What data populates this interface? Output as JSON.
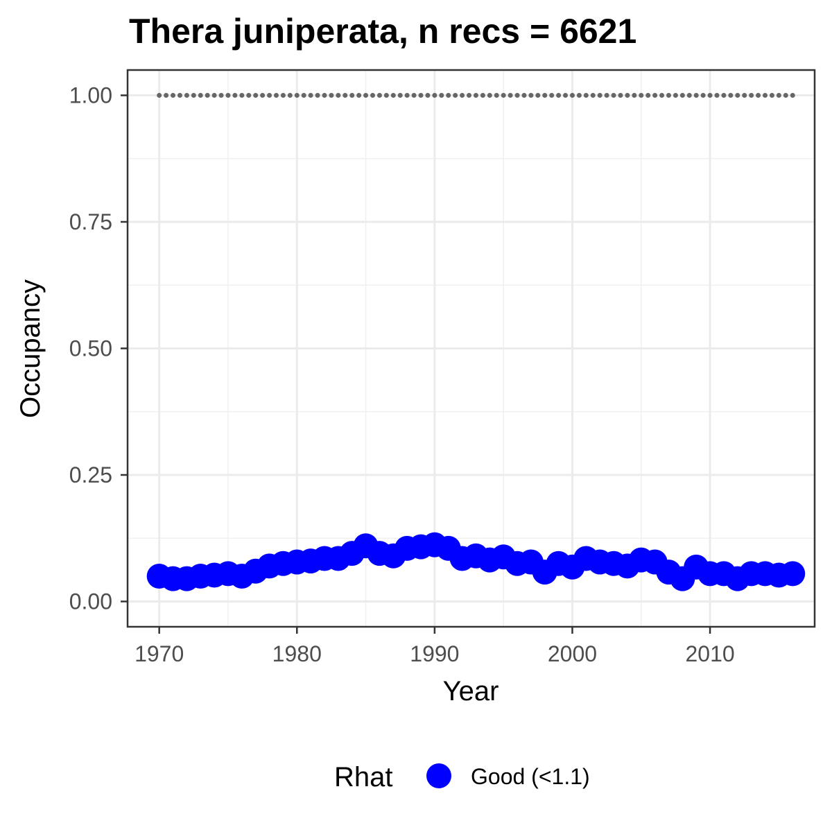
{
  "chart_data": {
    "type": "scatter",
    "title": "Thera juniperata, n recs = 6621",
    "xlabel": "Year",
    "ylabel": "Occupancy",
    "xlim": [
      1967.7,
      2017.6
    ],
    "ylim": [
      -0.05,
      1.05
    ],
    "x_ticks": [
      1970,
      1980,
      1990,
      2000,
      2010
    ],
    "x_tick_labels": [
      "1970",
      "1980",
      "1990",
      "2000",
      "2010"
    ],
    "y_ticks": [
      0.0,
      0.25,
      0.5,
      0.75,
      1.0
    ],
    "y_tick_labels": [
      "0.00",
      "0.25",
      "0.50",
      "0.75",
      "1.00"
    ],
    "grid": true,
    "legend": {
      "title": "Rhat",
      "position": "bottom",
      "entries": [
        {
          "label": "Good (<1.1)",
          "color": "#0000ff"
        }
      ]
    },
    "series": [
      {
        "name": "Good (<1.1)",
        "color": "#0000ff",
        "x": [
          1970,
          1971,
          1972,
          1973,
          1974,
          1975,
          1976,
          1977,
          1978,
          1979,
          1980,
          1981,
          1982,
          1983,
          1984,
          1985,
          1986,
          1987,
          1988,
          1989,
          1990,
          1991,
          1992,
          1993,
          1994,
          1995,
          1996,
          1997,
          1998,
          1999,
          2000,
          2001,
          2002,
          2003,
          2004,
          2005,
          2006,
          2007,
          2008,
          2009,
          2010,
          2011,
          2012,
          2013,
          2014,
          2015,
          2016
        ],
        "y": [
          0.05,
          0.045,
          0.045,
          0.05,
          0.052,
          0.055,
          0.05,
          0.06,
          0.07,
          0.075,
          0.078,
          0.08,
          0.085,
          0.085,
          0.095,
          0.11,
          0.095,
          0.09,
          0.105,
          0.108,
          0.112,
          0.105,
          0.085,
          0.09,
          0.082,
          0.088,
          0.075,
          0.078,
          0.058,
          0.075,
          0.068,
          0.085,
          0.078,
          0.075,
          0.07,
          0.082,
          0.078,
          0.058,
          0.045,
          0.068,
          0.055,
          0.055,
          0.045,
          0.055,
          0.055,
          0.052,
          0.055
        ]
      },
      {
        "name": "",
        "color": "#666666",
        "style": "dotted",
        "x": [
          1970,
          1971,
          1972,
          1973,
          1974,
          1975,
          1976,
          1977,
          1978,
          1979,
          1980,
          1981,
          1982,
          1983,
          1984,
          1985,
          1986,
          1987,
          1988,
          1989,
          1990,
          1991,
          1992,
          1993,
          1994,
          1995,
          1996,
          1997,
          1998,
          1999,
          2000,
          2001,
          2002,
          2003,
          2004,
          2005,
          2006,
          2007,
          2008,
          2009,
          2010,
          2011,
          2012,
          2013,
          2014,
          2015,
          2016
        ],
        "y": [
          1,
          1,
          1,
          1,
          1,
          1,
          1,
          1,
          1,
          1,
          1,
          1,
          1,
          1,
          1,
          1,
          1,
          1,
          1,
          1,
          1,
          1,
          1,
          1,
          1,
          1,
          1,
          1,
          1,
          1,
          1,
          1,
          1,
          1,
          1,
          1,
          1,
          1,
          1,
          1,
          1,
          1,
          1,
          1,
          1,
          1,
          1
        ]
      }
    ]
  }
}
